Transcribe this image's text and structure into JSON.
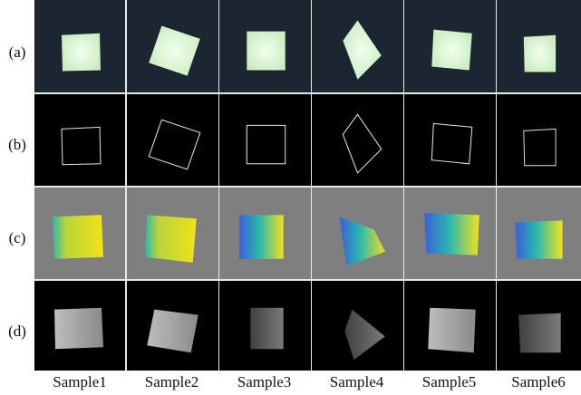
{
  "row_labels": [
    "(a)",
    "(b)",
    "(c)",
    "(d)"
  ],
  "column_labels": [
    "Sample1",
    "Sample2",
    "Sample3",
    "Sample4",
    "Sample5",
    "Sample6"
  ],
  "rows": [
    {
      "label": "(a)",
      "kind": "rgb-photo",
      "background": "#1c2630"
    },
    {
      "label": "(b)",
      "kind": "edge-outline",
      "background": "#000000"
    },
    {
      "label": "(c)",
      "kind": "colormap-depth",
      "background": "#7f7f7f"
    },
    {
      "label": "(d)",
      "kind": "grayscale-depth",
      "background": "#000000"
    }
  ],
  "colors": {
    "photo_shape": "#c9ecc0",
    "outline": "#e6e6e6",
    "colormap_low": "#3b5fd6",
    "colormap_mid": "#2ab7b0",
    "colormap_high": "#f2e21a",
    "gray_light": "#bdbdbd",
    "gray_dark": "#404040"
  }
}
